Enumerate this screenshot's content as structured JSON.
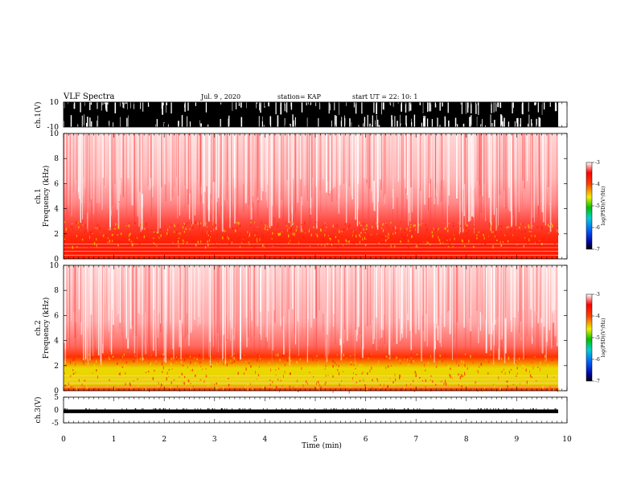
{
  "header": {
    "title": "VLF Spectra",
    "date": "Jul. 9 , 2020",
    "station": "station= KAP",
    "start": "start UT =  22: 10: 1"
  },
  "chart_data": [
    {
      "type": "line",
      "panel": "ch1-waveform",
      "ylabel": "ch.1(V)",
      "ylim": [
        -10,
        10
      ],
      "yticks": [
        "10",
        "-10"
      ],
      "xlim": [
        0,
        10
      ],
      "fill_color": "#000000"
    },
    {
      "type": "heatmap",
      "panel": "ch1-spectrogram",
      "ylabel": "ch.1\nFrequency (kHz)",
      "ylabel_line1": "ch.1",
      "ylabel_line2": "Frequency (kHz)",
      "ylim": [
        0,
        10
      ],
      "yticks": [
        "0",
        "2",
        "4",
        "6",
        "8",
        "10"
      ],
      "xlim": [
        0,
        10
      ],
      "dense_band_khz": [
        1,
        3
      ],
      "colorbar": {
        "label": "log(PSD)(V²/Hz)",
        "range": [
          -7,
          -3
        ],
        "ticks": [
          "-3",
          "-4",
          "-5",
          "-6",
          "-7"
        ]
      }
    },
    {
      "type": "heatmap",
      "panel": "ch2-spectrogram",
      "ylabel_line1": "ch.2",
      "ylabel_line2": "Frequency (kHz)",
      "ylim": [
        0,
        10
      ],
      "yticks": [
        "0",
        "2",
        "4",
        "6",
        "8",
        "10"
      ],
      "xlim": [
        0,
        10
      ],
      "dense_band_khz": [
        0,
        3
      ],
      "colorbar": {
        "label": "log(PSD)(V²/Hz)",
        "range": [
          -7,
          -3
        ],
        "ticks": [
          "-3",
          "-4",
          "-5",
          "-6",
          "-7"
        ]
      }
    },
    {
      "type": "line",
      "panel": "ch3-waveform",
      "ylabel": "ch.3(V)",
      "ylim": [
        -5,
        5
      ],
      "yticks": [
        "5",
        "0",
        "-5"
      ],
      "xlim": [
        0,
        10
      ],
      "xlabel": "Time (min)",
      "xticks": [
        "0",
        "1",
        "2",
        "3",
        "4",
        "5",
        "6",
        "7",
        "8",
        "9",
        "10"
      ],
      "band": [
        -1.2,
        0.2
      ]
    }
  ],
  "colors": {
    "spectro_light": "#ff6060",
    "spectro_dense": "#ff2a00",
    "spectro_yellow": "#f0e000",
    "waveform": "#000000"
  }
}
